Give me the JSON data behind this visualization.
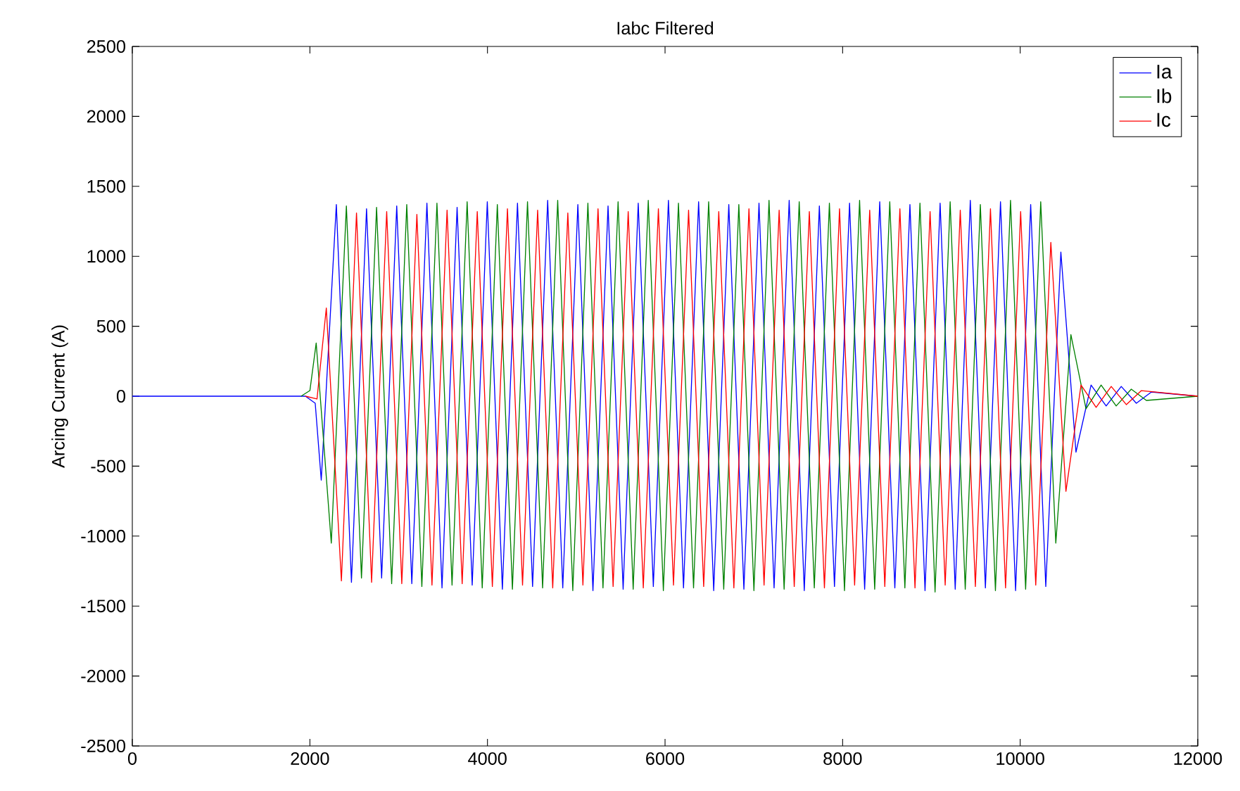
{
  "chart_data": {
    "type": "line",
    "title": "Iabc Filtered",
    "ylabel": "Arcing Current (A)",
    "xlim": [
      0,
      12000
    ],
    "ylim": [
      -2500,
      2500
    ],
    "xticks": [
      0,
      2000,
      4000,
      6000,
      8000,
      10000,
      12000
    ],
    "yticks": [
      -2500,
      -2000,
      -1500,
      -1000,
      -500,
      0,
      500,
      1000,
      1500,
      2000,
      2500
    ],
    "legend": "top right",
    "marker": "none",
    "line_style": "solid",
    "series": [
      {
        "name": "Ia",
        "color": "#0000ff",
        "x": [
          0,
          1950,
          2060,
          2128,
          2298,
          2468,
          2638,
          2808,
          2978,
          3148,
          3318,
          3488,
          3658,
          3828,
          3998,
          4168,
          4338,
          4508,
          4678,
          4848,
          5018,
          5188,
          5358,
          5528,
          5698,
          5868,
          6038,
          6208,
          6378,
          6548,
          6718,
          6888,
          7058,
          7228,
          7398,
          7568,
          7738,
          7908,
          8078,
          8248,
          8418,
          8588,
          8758,
          8928,
          9098,
          9268,
          9438,
          9608,
          9778,
          9948,
          10118,
          10288,
          10458,
          10628,
          10798,
          10968,
          11138,
          11308,
          11478,
          12000
        ],
        "values": [
          0,
          0,
          -50,
          -600,
          1370,
          -1330,
          1340,
          -1300,
          1360,
          -1340,
          1380,
          -1370,
          1350,
          -1350,
          1390,
          -1380,
          1380,
          -1360,
          1400,
          -1370,
          1370,
          -1390,
          1360,
          -1380,
          1380,
          -1360,
          1400,
          -1370,
          1390,
          -1390,
          1370,
          -1380,
          1380,
          -1370,
          1400,
          -1390,
          1360,
          -1360,
          1380,
          -1380,
          1390,
          -1370,
          1370,
          -1390,
          1380,
          -1380,
          1400,
          -1370,
          1390,
          -1390,
          1370,
          -1360,
          1030,
          -400,
          80,
          -70,
          70,
          -50,
          30,
          0
        ]
      },
      {
        "name": "Ib",
        "color": "#008000",
        "x": [
          1900,
          2000,
          2071,
          2241,
          2411,
          2581,
          2751,
          2921,
          3091,
          3261,
          3431,
          3601,
          3771,
          3941,
          4111,
          4281,
          4451,
          4621,
          4791,
          4961,
          5131,
          5301,
          5471,
          5641,
          5811,
          5981,
          6151,
          6321,
          6491,
          6661,
          6831,
          7001,
          7171,
          7341,
          7511,
          7681,
          7851,
          8021,
          8191,
          8361,
          8531,
          8701,
          8871,
          9041,
          9211,
          9381,
          9551,
          9721,
          9891,
          10061,
          10231,
          10401,
          10571,
          10741,
          10911,
          11081,
          11251,
          11421,
          12000
        ],
        "values": [
          0,
          40,
          380,
          -1050,
          1360,
          -1300,
          1350,
          -1340,
          1370,
          -1360,
          1380,
          -1350,
          1390,
          -1370,
          1370,
          -1380,
          1390,
          -1370,
          1400,
          -1390,
          1380,
          -1370,
          1390,
          -1380,
          1400,
          -1390,
          1380,
          -1370,
          1390,
          -1380,
          1370,
          -1390,
          1400,
          -1380,
          1390,
          -1370,
          1380,
          -1390,
          1400,
          -1380,
          1390,
          -1370,
          1380,
          -1400,
          1390,
          -1380,
          1370,
          -1390,
          1400,
          -1380,
          1390,
          -1050,
          440,
          -90,
          80,
          -70,
          50,
          -30,
          0
        ]
      },
      {
        "name": "Ic",
        "color": "#ff0000",
        "x": [
          1950,
          2080,
          2185,
          2355,
          2525,
          2695,
          2865,
          3035,
          3205,
          3375,
          3545,
          3715,
          3885,
          4055,
          4225,
          4395,
          4565,
          4735,
          4905,
          5075,
          5245,
          5415,
          5585,
          5755,
          5925,
          6095,
          6265,
          6435,
          6605,
          6775,
          6945,
          7115,
          7285,
          7455,
          7625,
          7795,
          7965,
          8135,
          8305,
          8475,
          8645,
          8815,
          8985,
          9155,
          9325,
          9495,
          9665,
          9835,
          10005,
          10175,
          10345,
          10515,
          10685,
          10855,
          11025,
          11195,
          11365,
          12000
        ],
        "values": [
          0,
          -20,
          630,
          -1320,
          1310,
          -1330,
          1320,
          -1340,
          1300,
          -1350,
          1330,
          -1340,
          1320,
          -1360,
          1340,
          -1350,
          1330,
          -1370,
          1310,
          -1350,
          1340,
          -1360,
          1320,
          -1370,
          1340,
          -1350,
          1330,
          -1360,
          1320,
          -1370,
          1340,
          -1350,
          1330,
          -1360,
          1320,
          -1370,
          1340,
          -1350,
          1330,
          -1360,
          1340,
          -1370,
          1320,
          -1350,
          1330,
          -1360,
          1340,
          -1370,
          1320,
          -1350,
          1100,
          -680,
          80,
          -80,
          70,
          -60,
          40,
          0
        ]
      }
    ]
  }
}
